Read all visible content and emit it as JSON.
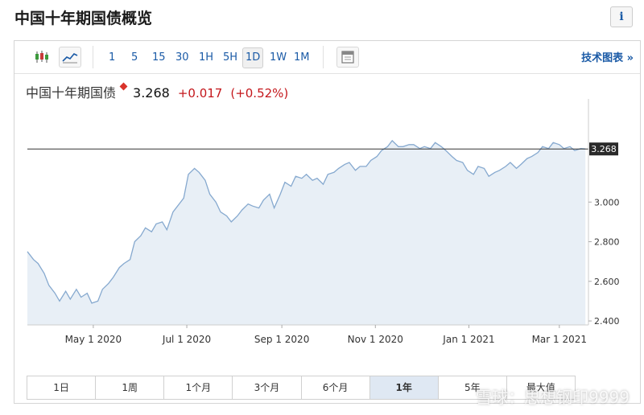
{
  "page": {
    "title": "中国十年期国债概览"
  },
  "toolbar": {
    "timeframes": [
      "1",
      "5",
      "15",
      "30",
      "1H",
      "5H",
      "1D",
      "1W",
      "1M"
    ],
    "active_timeframe": "1D",
    "chart_types_link": "技术图表 »"
  },
  "quote": {
    "name": "中国十年期国债",
    "price": "3.268",
    "change": "+0.017",
    "change_pct": "(+0.52%)"
  },
  "range_buttons": [
    "1日",
    "1周",
    "1个月",
    "3个月",
    "6个月",
    "1年",
    "5年",
    "最大值"
  ],
  "active_range": "1年",
  "watermark_text": "雪球：思想钢印9999",
  "chart_data": {
    "type": "area",
    "title": "",
    "xlabel": "",
    "ylabel": "",
    "ylim": [
      2.38,
      3.48
    ],
    "yticks": [
      2.4,
      2.6,
      2.8,
      3.0
    ],
    "ytick_labels": [
      "2.400",
      "2.600",
      "2.800",
      "3.000"
    ],
    "xlim": [
      "2020-03-19",
      "2021-03-20"
    ],
    "xticks": [
      "2020-05-01",
      "2020-07-01",
      "2020-09-01",
      "2020-11-01",
      "2021-01-01",
      "2021-03-01"
    ],
    "xtick_labels": [
      "May 1 2020",
      "Jul 1 2020",
      "Sep 1 2020",
      "Nov 1 2020",
      "Jan 1 2021",
      "Mar 1 2021"
    ],
    "current_value": 3.268,
    "current_value_label": "3.268",
    "reference_line": 3.268,
    "grid": false,
    "colors": {
      "line": "#86a9cf",
      "fill": "#e8eff6",
      "reference": "#333333",
      "label_bg": "#2a2a2a"
    },
    "x": [
      "2020-03-19",
      "2020-03-23",
      "2020-03-26",
      "2020-03-30",
      "2020-04-02",
      "2020-04-06",
      "2020-04-09",
      "2020-04-13",
      "2020-04-16",
      "2020-04-20",
      "2020-04-23",
      "2020-04-27",
      "2020-04-30",
      "2020-05-04",
      "2020-05-07",
      "2020-05-11",
      "2020-05-14",
      "2020-05-18",
      "2020-05-21",
      "2020-05-25",
      "2020-05-28",
      "2020-06-01",
      "2020-06-04",
      "2020-06-08",
      "2020-06-11",
      "2020-06-15",
      "2020-06-18",
      "2020-06-22",
      "2020-06-25",
      "2020-06-29",
      "2020-07-02",
      "2020-07-06",
      "2020-07-09",
      "2020-07-13",
      "2020-07-16",
      "2020-07-20",
      "2020-07-23",
      "2020-07-27",
      "2020-07-30",
      "2020-08-03",
      "2020-08-06",
      "2020-08-10",
      "2020-08-13",
      "2020-08-17",
      "2020-08-20",
      "2020-08-24",
      "2020-08-27",
      "2020-08-31",
      "2020-09-03",
      "2020-09-07",
      "2020-09-10",
      "2020-09-14",
      "2020-09-17",
      "2020-09-21",
      "2020-09-24",
      "2020-09-28",
      "2020-10-01",
      "2020-10-05",
      "2020-10-08",
      "2020-10-12",
      "2020-10-15",
      "2020-10-19",
      "2020-10-22",
      "2020-10-26",
      "2020-10-29",
      "2020-11-02",
      "2020-11-05",
      "2020-11-09",
      "2020-11-12",
      "2020-11-16",
      "2020-11-19",
      "2020-11-23",
      "2020-11-26",
      "2020-11-30",
      "2020-12-03",
      "2020-12-07",
      "2020-12-10",
      "2020-12-14",
      "2020-12-17",
      "2020-12-21",
      "2020-12-24",
      "2020-12-28",
      "2020-12-31",
      "2021-01-04",
      "2021-01-07",
      "2021-01-11",
      "2021-01-14",
      "2021-01-18",
      "2021-01-21",
      "2021-01-25",
      "2021-01-28",
      "2021-02-01",
      "2021-02-04",
      "2021-02-08",
      "2021-02-11",
      "2021-02-15",
      "2021-02-18",
      "2021-02-22",
      "2021-02-25",
      "2021-03-01",
      "2021-03-04",
      "2021-03-08",
      "2021-03-11",
      "2021-03-15",
      "2021-03-18"
    ],
    "y": [
      2.75,
      2.71,
      2.69,
      2.64,
      2.58,
      2.54,
      2.5,
      2.55,
      2.51,
      2.56,
      2.52,
      2.54,
      2.49,
      2.5,
      2.56,
      2.59,
      2.62,
      2.67,
      2.69,
      2.71,
      2.8,
      2.83,
      2.87,
      2.85,
      2.89,
      2.9,
      2.86,
      2.95,
      2.98,
      3.02,
      3.14,
      3.17,
      3.15,
      3.11,
      3.04,
      3.0,
      2.95,
      2.93,
      2.9,
      2.93,
      2.96,
      2.99,
      2.98,
      2.97,
      3.01,
      3.04,
      2.97,
      3.04,
      3.1,
      3.08,
      3.13,
      3.12,
      3.14,
      3.11,
      3.12,
      3.09,
      3.14,
      3.15,
      3.17,
      3.19,
      3.2,
      3.16,
      3.18,
      3.18,
      3.21,
      3.23,
      3.26,
      3.28,
      3.31,
      3.28,
      3.28,
      3.29,
      3.29,
      3.27,
      3.28,
      3.27,
      3.3,
      3.28,
      3.26,
      3.23,
      3.21,
      3.2,
      3.16,
      3.14,
      3.18,
      3.17,
      3.13,
      3.15,
      3.16,
      3.18,
      3.2,
      3.17,
      3.19,
      3.22,
      3.23,
      3.25,
      3.28,
      3.27,
      3.3,
      3.29,
      3.27,
      3.28,
      3.26,
      3.27,
      3.268
    ]
  }
}
